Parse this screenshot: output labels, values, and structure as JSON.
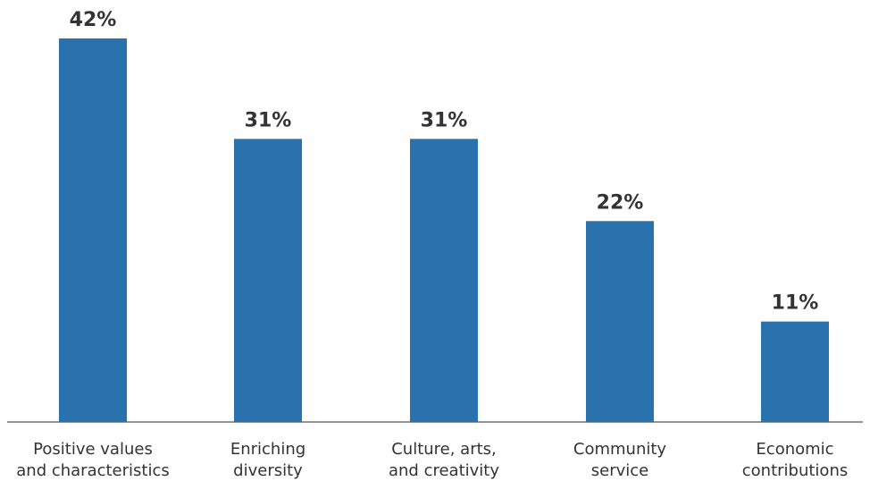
{
  "chart_data": {
    "type": "bar",
    "categories": [
      [
        "Positive values",
        "and characteristics"
      ],
      [
        "Enriching",
        "diversity"
      ],
      [
        "Culture, arts,",
        "and creativity"
      ],
      [
        "Community",
        "service"
      ],
      [
        "Economic",
        "contributions"
      ]
    ],
    "values": [
      42,
      31,
      31,
      22,
      11
    ],
    "value_labels": [
      "42%",
      "31%",
      "31%",
      "22%",
      "11%"
    ],
    "ylim": [
      0,
      42
    ],
    "grid": false,
    "legend": false,
    "colors": {
      "bar": "#2a72ad",
      "text": "#333333",
      "axis": "#555555"
    }
  }
}
